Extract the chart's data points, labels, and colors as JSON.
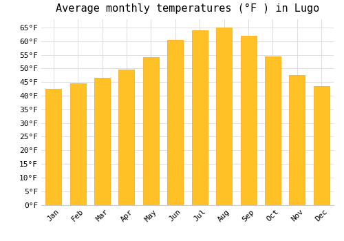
{
  "title": "Average monthly temperatures (°F ) in Lugo",
  "months": [
    "Jan",
    "Feb",
    "Mar",
    "Apr",
    "May",
    "Jun",
    "Jul",
    "Aug",
    "Sep",
    "Oct",
    "Nov",
    "Dec"
  ],
  "values": [
    42.5,
    44.5,
    46.5,
    49.5,
    54,
    60.5,
    64,
    65,
    62,
    54.5,
    47.5,
    43.5
  ],
  "bar_color_face": "#FFC125",
  "bar_color_edge": "#FFA500",
  "background_color": "#FFFFFF",
  "grid_color": "#E0E0E0",
  "ylim": [
    0,
    68
  ],
  "ytick_step": 5,
  "title_fontsize": 11,
  "tick_fontsize": 8,
  "font_family": "monospace"
}
